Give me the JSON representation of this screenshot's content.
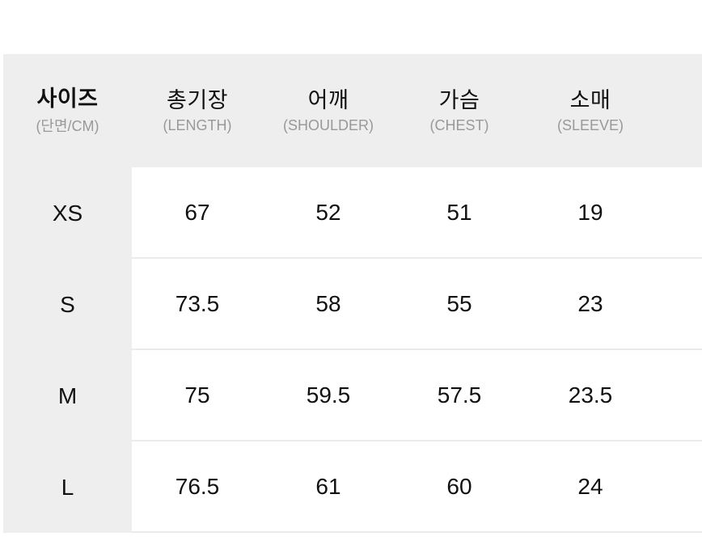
{
  "colors": {
    "header_bg": "#eeeeee",
    "size_column_bg": "#eeeeee",
    "divider": "#ebebeb",
    "text_primary": "#111111",
    "text_secondary": "#999999",
    "page_bg": "#ffffff"
  },
  "table": {
    "columns": [
      {
        "label": "사이즈",
        "sublabel": "(단면/CM)"
      },
      {
        "label": "총기장",
        "sublabel": "(LENGTH)"
      },
      {
        "label": "어깨",
        "sublabel": "(SHOULDER)"
      },
      {
        "label": "가슴",
        "sublabel": "(CHEST)"
      },
      {
        "label": "소매",
        "sublabel": "(SLEEVE)"
      }
    ],
    "rows": [
      {
        "size": "XS",
        "values": [
          "67",
          "52",
          "51",
          "19"
        ]
      },
      {
        "size": "S",
        "values": [
          "73.5",
          "58",
          "55",
          "23"
        ]
      },
      {
        "size": "M",
        "values": [
          "75",
          "59.5",
          "57.5",
          "23.5"
        ]
      },
      {
        "size": "L",
        "values": [
          "76.5",
          "61",
          "60",
          "24"
        ]
      }
    ]
  },
  "chart_data": {
    "type": "table",
    "columns": [
      "사이즈 (단면/CM)",
      "총기장 (LENGTH)",
      "어깨 (SHOULDER)",
      "가슴 (CHEST)",
      "소매 (SLEEVE)"
    ],
    "rows": [
      [
        "XS",
        67,
        52,
        51,
        19
      ],
      [
        "S",
        73.5,
        58,
        55,
        23
      ],
      [
        "M",
        75,
        59.5,
        57.5,
        23.5
      ],
      [
        "L",
        76.5,
        61,
        60,
        24
      ]
    ]
  }
}
